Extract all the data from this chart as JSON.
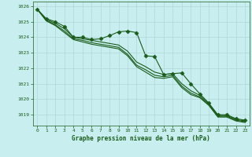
{
  "title": "Graphe pression niveau de la mer (hPa)",
  "background_color": "#c8eef0",
  "grid_color": "#b0d8d8",
  "line_color": "#1a5c1a",
  "xlim": [
    -0.5,
    23.5
  ],
  "ylim": [
    1018.3,
    1026.3
  ],
  "yticks": [
    1019,
    1020,
    1021,
    1022,
    1023,
    1024,
    1025,
    1026
  ],
  "xticks": [
    0,
    1,
    2,
    3,
    4,
    5,
    6,
    7,
    8,
    9,
    10,
    11,
    12,
    13,
    14,
    15,
    16,
    17,
    18,
    19,
    20,
    21,
    22,
    23
  ],
  "series": [
    {
      "x": [
        0,
        1,
        2,
        3,
        4,
        5,
        6,
        7,
        8,
        9,
        10,
        11,
        12,
        13,
        14,
        15,
        16,
        17,
        18,
        19,
        20,
        21,
        22,
        23
      ],
      "y": [
        1025.8,
        1025.2,
        1025.0,
        1024.7,
        1024.0,
        1024.0,
        1023.85,
        1023.9,
        1024.1,
        1024.35,
        1024.4,
        1024.3,
        1022.8,
        1022.75,
        1021.6,
        1021.65,
        1021.7,
        1021.0,
        1020.35,
        1019.75,
        1019.0,
        1019.0,
        1018.75,
        1018.65
      ],
      "marker": "D",
      "markersize": 2.5
    },
    {
      "x": [
        0,
        1,
        2,
        3,
        4,
        5,
        6,
        7,
        8,
        9,
        10,
        11,
        12,
        13,
        14,
        15,
        16,
        17,
        18,
        19,
        20,
        21,
        22,
        23
      ],
      "y": [
        1025.8,
        1025.15,
        1024.9,
        1024.55,
        1024.0,
        1023.9,
        1023.8,
        1023.7,
        1023.6,
        1023.5,
        1023.1,
        1022.4,
        1022.1,
        1021.75,
        1021.6,
        1021.65,
        1021.0,
        1020.55,
        1020.25,
        1019.7,
        1018.95,
        1018.95,
        1018.7,
        1018.6
      ],
      "marker": null,
      "markersize": 0
    },
    {
      "x": [
        0,
        1,
        2,
        3,
        4,
        5,
        6,
        7,
        8,
        9,
        10,
        11,
        12,
        13,
        14,
        15,
        16,
        17,
        18,
        19,
        20,
        21,
        22,
        23
      ],
      "y": [
        1025.8,
        1025.1,
        1024.8,
        1024.4,
        1023.9,
        1023.8,
        1023.65,
        1023.55,
        1023.45,
        1023.35,
        1022.9,
        1022.2,
        1021.9,
        1021.55,
        1021.45,
        1021.55,
        1020.85,
        1020.4,
        1020.15,
        1019.65,
        1018.9,
        1018.9,
        1018.65,
        1018.55
      ],
      "marker": null,
      "markersize": 0
    },
    {
      "x": [
        0,
        1,
        2,
        3,
        4,
        5,
        6,
        7,
        8,
        9,
        10,
        11,
        12,
        13,
        14,
        15,
        16,
        17,
        18,
        19,
        20,
        21,
        22,
        23
      ],
      "y": [
        1025.8,
        1025.05,
        1024.75,
        1024.3,
        1023.85,
        1023.7,
        1023.55,
        1023.45,
        1023.35,
        1023.25,
        1022.8,
        1022.1,
        1021.75,
        1021.4,
        1021.35,
        1021.45,
        1020.75,
        1020.3,
        1020.1,
        1019.6,
        1018.85,
        1018.85,
        1018.6,
        1018.5
      ],
      "marker": null,
      "markersize": 0
    }
  ]
}
